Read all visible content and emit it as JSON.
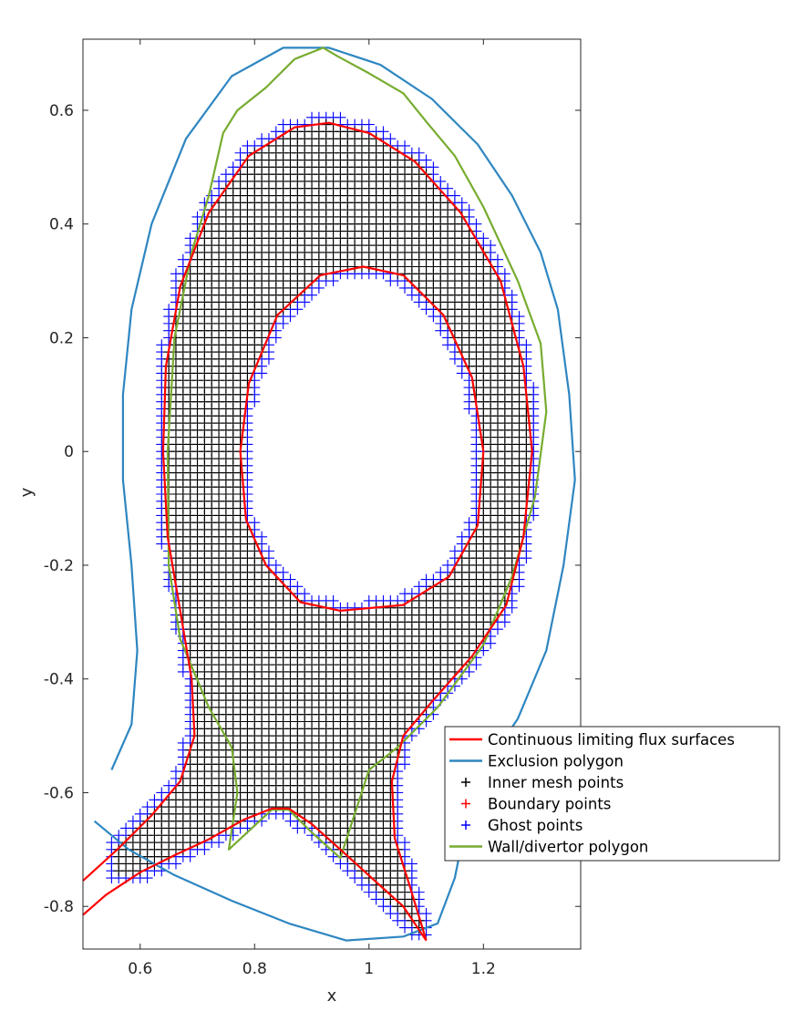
{
  "chart_data": {
    "type": "line",
    "title": "",
    "xlabel": "x",
    "ylabel": "y",
    "xlim": [
      0.5,
      1.37
    ],
    "ylim": [
      -0.875,
      0.725
    ],
    "xticks": [
      0.6,
      0.8,
      1.0,
      1.2
    ],
    "xtick_labels": [
      "0.6",
      "0.8",
      "1",
      "1.2"
    ],
    "yticks": [
      0.6,
      0.4,
      0.2,
      0.0,
      -0.2,
      -0.4,
      -0.6,
      -0.8
    ],
    "ytick_labels": [
      "0.6",
      "0.4",
      "0.2",
      "0",
      "-0.2",
      "-0.4",
      "-0.6",
      "-0.8"
    ],
    "grid": false,
    "legend_position": "lower-right",
    "mesh_spacing": 0.0125,
    "series": [
      {
        "name": "Continuous limiting flux surfaces",
        "kind": "line",
        "color": "#ff0000",
        "paths": [
          [
            [
              0.95,
              -0.28
            ],
            [
              0.88,
              -0.265
            ],
            [
              0.82,
              -0.2
            ],
            [
              0.785,
              -0.12
            ],
            [
              0.775,
              0.0
            ],
            [
              0.79,
              0.12
            ],
            [
              0.84,
              0.24
            ],
            [
              0.915,
              0.31
            ],
            [
              0.99,
              0.325
            ],
            [
              1.06,
              0.31
            ],
            [
              1.13,
              0.24
            ],
            [
              1.18,
              0.13
            ],
            [
              1.2,
              0.0
            ],
            [
              1.19,
              -0.13
            ],
            [
              1.14,
              -0.22
            ],
            [
              1.06,
              -0.27
            ],
            [
              0.95,
              -0.28
            ]
          ],
          [
            [
              0.5,
              -0.815
            ],
            [
              0.54,
              -0.78
            ],
            [
              0.6,
              -0.74
            ],
            [
              0.66,
              -0.71
            ],
            [
              0.72,
              -0.682
            ],
            [
              0.78,
              -0.648
            ],
            [
              0.83,
              -0.628
            ],
            [
              0.86,
              -0.628
            ],
            [
              0.9,
              -0.655
            ],
            [
              0.95,
              -0.7
            ],
            [
              1.01,
              -0.755
            ],
            [
              1.06,
              -0.8
            ],
            [
              1.1,
              -0.86
            ]
          ],
          [
            [
              0.5,
              -0.755
            ],
            [
              0.56,
              -0.7
            ],
            [
              0.62,
              -0.64
            ],
            [
              0.67,
              -0.58
            ],
            [
              0.695,
              -0.5
            ],
            [
              0.69,
              -0.4
            ],
            [
              0.67,
              -0.28
            ],
            [
              0.648,
              -0.15
            ],
            [
              0.64,
              0.0
            ],
            [
              0.645,
              0.15
            ],
            [
              0.67,
              0.29
            ],
            [
              0.72,
              0.42
            ],
            [
              0.79,
              0.52
            ],
            [
              0.87,
              0.57
            ],
            [
              0.93,
              0.578
            ],
            [
              1.0,
              0.56
            ],
            [
              1.08,
              0.51
            ],
            [
              1.16,
              0.42
            ],
            [
              1.23,
              0.3
            ],
            [
              1.27,
              0.15
            ],
            [
              1.285,
              0.0
            ],
            [
              1.27,
              -0.15
            ],
            [
              1.24,
              -0.27
            ],
            [
              1.18,
              -0.36
            ],
            [
              1.11,
              -0.44
            ],
            [
              1.06,
              -0.5
            ],
            [
              1.04,
              -0.58
            ],
            [
              1.045,
              -0.68
            ],
            [
              1.07,
              -0.76
            ],
            [
              1.1,
              -0.86
            ]
          ]
        ]
      },
      {
        "name": "Exclusion polygon",
        "kind": "line",
        "color": "#2e86c1",
        "paths": [
          [
            [
              0.55,
              -0.56
            ],
            [
              0.585,
              -0.48
            ],
            [
              0.595,
              -0.35
            ],
            [
              0.585,
              -0.2
            ],
            [
              0.57,
              -0.05
            ],
            [
              0.57,
              0.1
            ],
            [
              0.585,
              0.25
            ],
            [
              0.62,
              0.4
            ],
            [
              0.68,
              0.55
            ],
            [
              0.76,
              0.66
            ],
            [
              0.85,
              0.71
            ],
            [
              0.93,
              0.71
            ],
            [
              1.02,
              0.68
            ],
            [
              1.11,
              0.62
            ],
            [
              1.19,
              0.54
            ],
            [
              1.25,
              0.45
            ],
            [
              1.3,
              0.35
            ],
            [
              1.33,
              0.25
            ],
            [
              1.35,
              0.1
            ],
            [
              1.36,
              -0.05
            ],
            [
              1.34,
              -0.2
            ],
            [
              1.31,
              -0.35
            ],
            [
              1.26,
              -0.47
            ],
            [
              1.2,
              -0.56
            ],
            [
              1.17,
              -0.65
            ],
            [
              1.15,
              -0.75
            ],
            [
              1.12,
              -0.83
            ],
            [
              1.06,
              -0.853
            ],
            [
              0.96,
              -0.86
            ],
            [
              0.86,
              -0.83
            ],
            [
              0.76,
              -0.79
            ],
            [
              0.66,
              -0.745
            ],
            [
              0.58,
              -0.7
            ],
            [
              0.52,
              -0.65
            ]
          ]
        ]
      },
      {
        "name": "Inner mesh points",
        "kind": "marker",
        "marker": "+",
        "color": "#000000"
      },
      {
        "name": "Boundary points",
        "kind": "marker",
        "marker": "+",
        "color": "#ff0000"
      },
      {
        "name": "Ghost points",
        "kind": "marker",
        "marker": "+",
        "color": "#0000ff"
      },
      {
        "name": "Wall/divertor polygon",
        "kind": "line",
        "color": "#77ac30",
        "paths": [
          [
            [
              0.87,
              0.69
            ],
            [
              0.82,
              0.64
            ],
            [
              0.77,
              0.6
            ],
            [
              0.745,
              0.56
            ],
            [
              0.72,
              0.45
            ],
            [
              0.69,
              0.35
            ],
            [
              0.66,
              0.2
            ],
            [
              0.648,
              0.0
            ],
            [
              0.65,
              -0.2
            ],
            [
              0.67,
              -0.33
            ],
            [
              0.72,
              -0.45
            ],
            [
              0.76,
              -0.52
            ],
            [
              0.77,
              -0.6
            ],
            [
              0.755,
              -0.7
            ],
            [
              0.83,
              -0.63
            ],
            [
              0.86,
              -0.63
            ],
            [
              0.9,
              -0.67
            ],
            [
              0.95,
              -0.715
            ],
            [
              1.0,
              -0.56
            ],
            [
              1.05,
              -0.52
            ],
            [
              1.12,
              -0.45
            ],
            [
              1.2,
              -0.34
            ],
            [
              1.25,
              -0.22
            ],
            [
              1.29,
              -0.08
            ],
            [
              1.31,
              0.07
            ],
            [
              1.3,
              0.19
            ],
            [
              1.26,
              0.3
            ],
            [
              1.2,
              0.43
            ],
            [
              1.15,
              0.52
            ],
            [
              1.1,
              0.58
            ],
            [
              1.06,
              0.63
            ],
            [
              1.0,
              0.665
            ],
            [
              0.945,
              0.695
            ],
            [
              0.92,
              0.71
            ],
            [
              0.87,
              0.69
            ]
          ]
        ]
      }
    ]
  }
}
